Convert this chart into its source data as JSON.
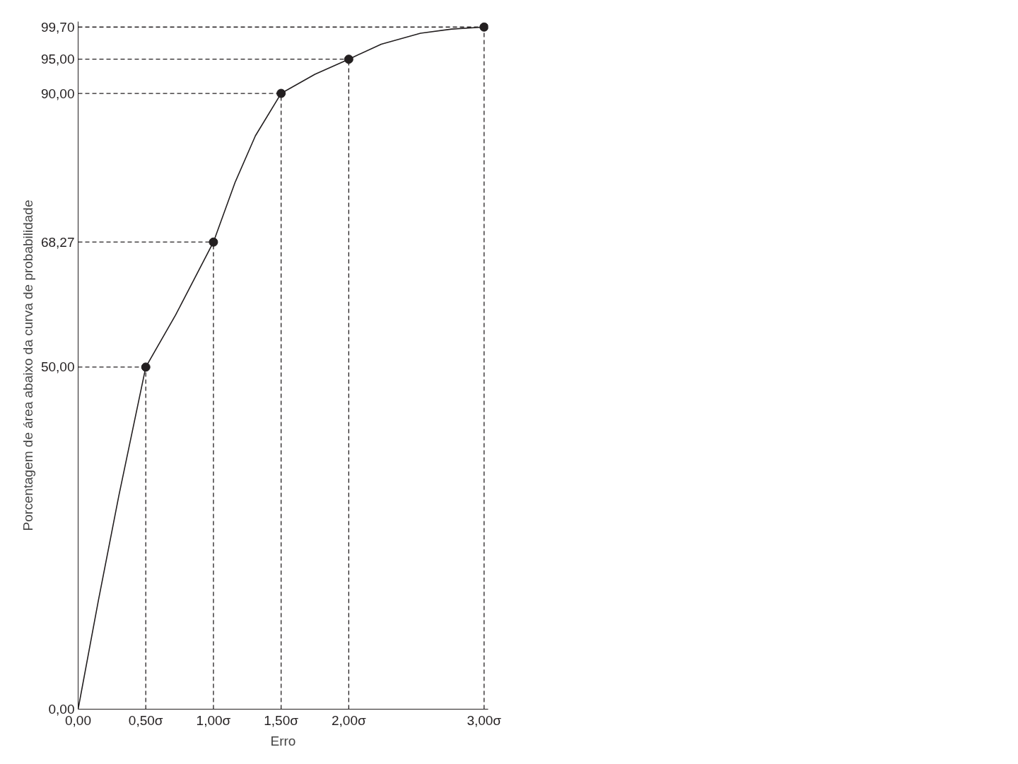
{
  "chart_data": {
    "type": "line",
    "xlabel": "Erro",
    "ylabel": "Porcentagem de área abaixo da curva de probabilidade",
    "xlim": [
      0,
      3.03
    ],
    "ylim": [
      0,
      100.5
    ],
    "xticks": [
      {
        "value": 0,
        "label": "0,00"
      },
      {
        "value": 0.5,
        "label": "0,50σ"
      },
      {
        "value": 1.0,
        "label": "1,00σ"
      },
      {
        "value": 1.5,
        "label": "1,50σ"
      },
      {
        "value": 2.0,
        "label": "2,00σ"
      },
      {
        "value": 3.0,
        "label": "3,00σ"
      }
    ],
    "yticks": [
      {
        "value": 0,
        "label": "0,00"
      },
      {
        "value": 50,
        "label": "50,00"
      },
      {
        "value": 68.27,
        "label": "68,27"
      },
      {
        "value": 90,
        "label": "90,00"
      },
      {
        "value": 95,
        "label": "95,00"
      },
      {
        "value": 99.7,
        "label": "99,70"
      }
    ],
    "grid": false,
    "series": [
      {
        "color": "#231f20",
        "marker": "none",
        "line_style": "solid",
        "x": [
          0,
          0.15,
          0.3,
          0.5,
          0.72,
          1.0,
          1.16,
          1.31,
          1.5,
          1.75,
          2.0,
          2.24,
          2.53,
          2.76,
          3.0
        ],
        "values": [
          0,
          15.9,
          31.1,
          50,
          57.6,
          68.27,
          77.0,
          83.8,
          90,
          92.8,
          95,
          97.2,
          98.8,
          99.4,
          99.7
        ]
      },
      {
        "type": "scatter",
        "color": "#231f20",
        "marker": "circle",
        "x": [
          0.5,
          1.0,
          1.5,
          2.0,
          3.0
        ],
        "values": [
          50,
          68.27,
          90,
          95,
          99.7
        ]
      }
    ],
    "ref_lines": [
      {
        "axis": "y",
        "value": 50,
        "line_style": "dashed",
        "color": "#231f20"
      },
      {
        "axis": "y",
        "value": 68.27,
        "line_style": "dashed",
        "color": "#231f20"
      },
      {
        "axis": "y",
        "value": 90,
        "line_style": "dashed",
        "color": "#231f20"
      },
      {
        "axis": "y",
        "value": 95,
        "line_style": "dashed",
        "color": "#231f20"
      },
      {
        "axis": "y",
        "value": 99.7,
        "line_style": "dashed",
        "color": "#231f20"
      },
      {
        "axis": "x",
        "value": 0.5,
        "line_style": "dashed",
        "color": "#231f20"
      },
      {
        "axis": "x",
        "value": 1.0,
        "line_style": "dashed",
        "color": "#231f20"
      },
      {
        "axis": "x",
        "value": 1.5,
        "line_style": "dashed",
        "color": "#231f20"
      },
      {
        "axis": "x",
        "value": 2.0,
        "line_style": "dashed",
        "color": "#231f20"
      },
      {
        "axis": "x",
        "value": 3.0,
        "line_style": "dashed",
        "color": "#231f20"
      }
    ]
  }
}
